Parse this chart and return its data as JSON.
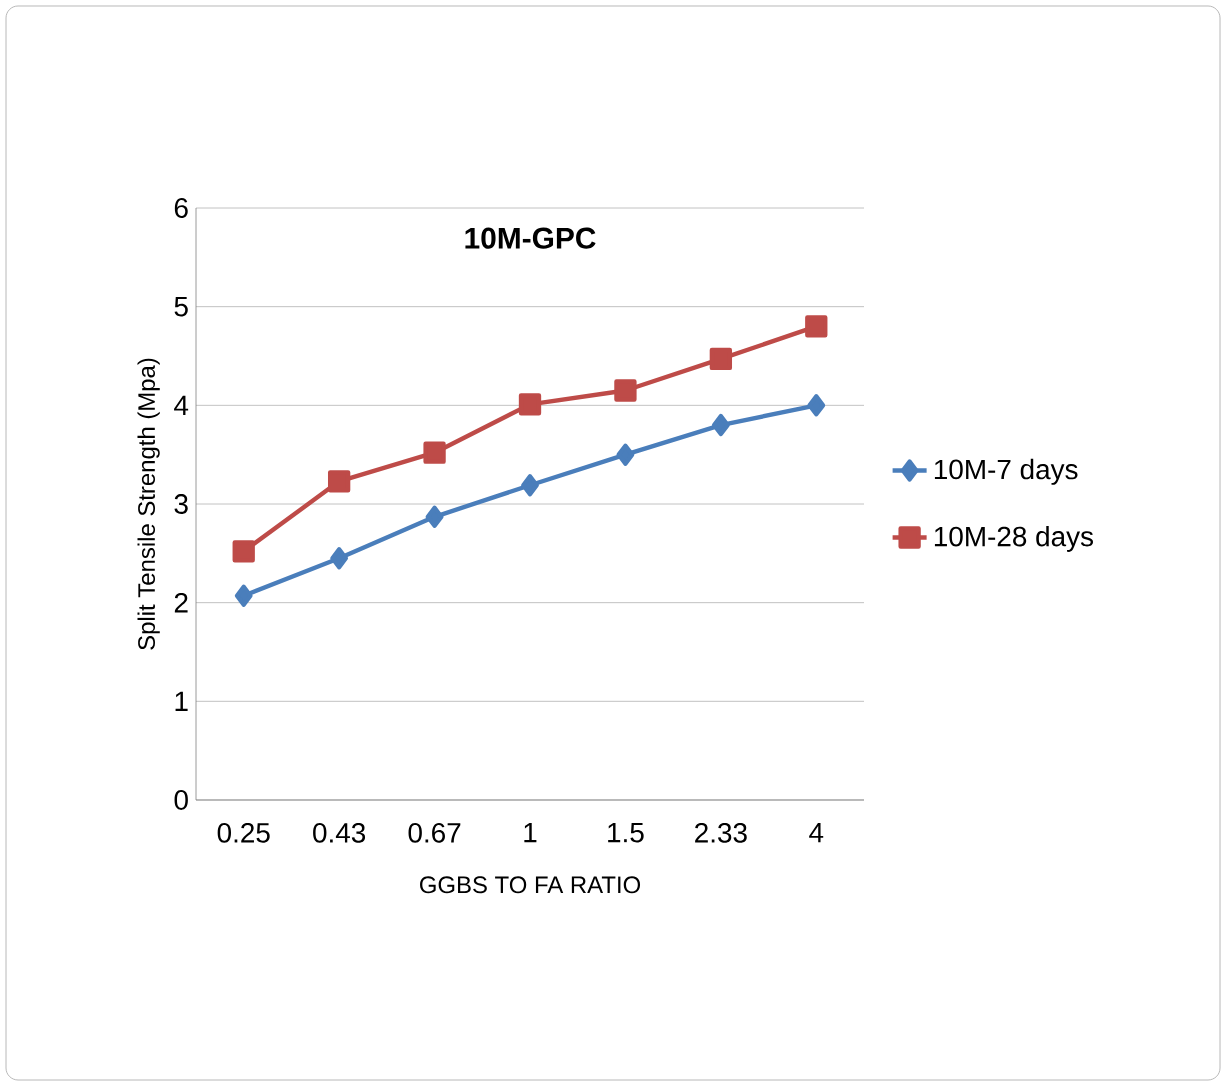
{
  "chart_data": {
    "type": "line",
    "title": "10M-GPC",
    "xlabel": "GGBS TO FA RATIO",
    "ylabel": "Split Tensile  Strength (Mpa)",
    "categories": [
      "0.25",
      "0.43",
      "0.67",
      "1",
      "1.5",
      "2.33",
      "4"
    ],
    "series": [
      {
        "name": "10M-7 days",
        "color": "#4a7ebb",
        "marker": "diamond",
        "values": [
          2.07,
          2.45,
          2.87,
          3.19,
          3.5,
          3.8,
          4.0
        ]
      },
      {
        "name": "10M-28 days",
        "color": "#be4b48",
        "marker": "square",
        "values": [
          2.52,
          3.23,
          3.52,
          4.01,
          4.15,
          4.47,
          4.8
        ]
      }
    ],
    "ylim": [
      0,
      6
    ],
    "yticks": [
      0,
      1,
      2,
      3,
      4,
      5,
      6
    ],
    "grid": "y",
    "legend": "right",
    "line_style": "solid"
  }
}
